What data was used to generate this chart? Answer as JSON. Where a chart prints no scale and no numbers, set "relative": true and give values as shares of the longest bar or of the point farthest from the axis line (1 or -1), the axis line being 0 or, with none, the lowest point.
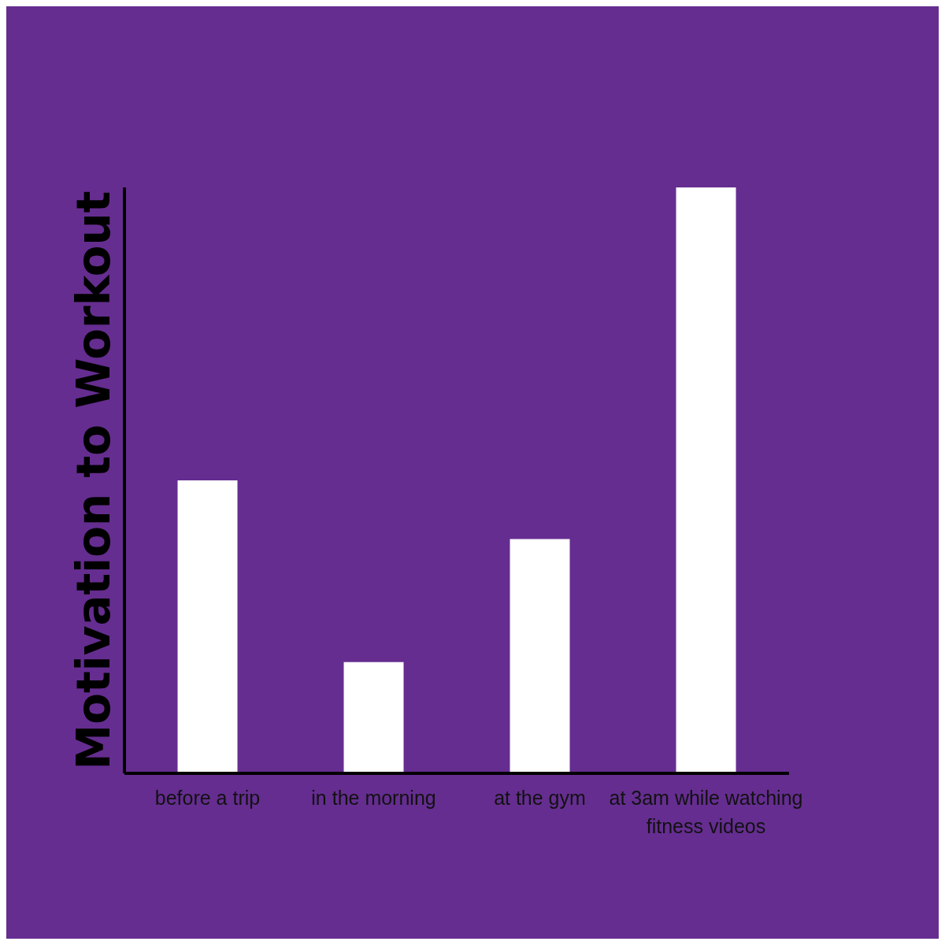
{
  "chart_data": {
    "type": "bar",
    "relative": true,
    "ylabel": "Motivation to Workout",
    "categories": [
      "before a trip",
      "in the morning",
      "at the gym",
      "at 3am while watching fitness videos"
    ],
    "values": [
      0.5,
      0.19,
      0.4,
      1
    ],
    "color": "#ffffff"
  }
}
